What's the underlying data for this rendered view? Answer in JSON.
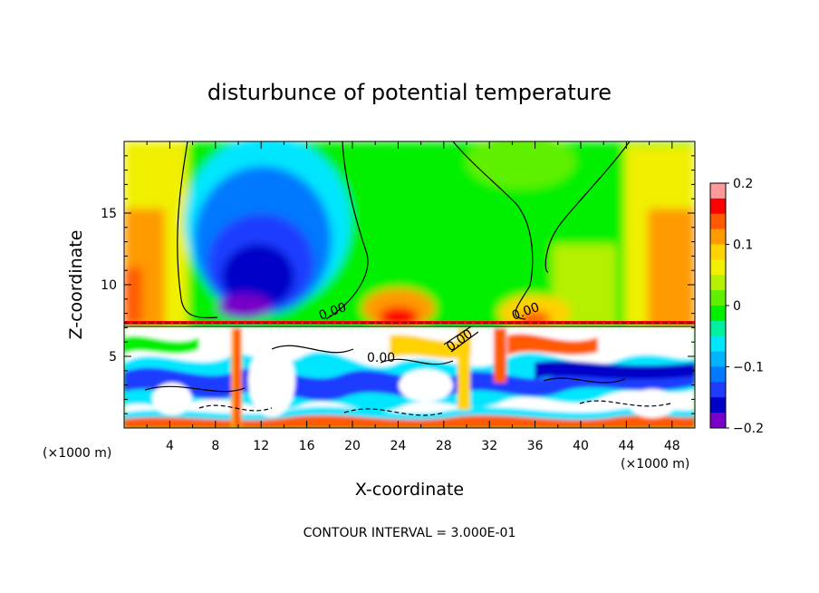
{
  "chart_data": {
    "type": "heatmap",
    "title": "disturbunce of potential temperature",
    "xlabel": "X-coordinate",
    "ylabel": "Z-coordinate",
    "x_unit": "(×1000 m)",
    "xlim": [
      0,
      50
    ],
    "ylim": [
      0,
      20
    ],
    "x_ticks": [
      4,
      8,
      12,
      16,
      20,
      24,
      28,
      32,
      36,
      40,
      44,
      48
    ],
    "y_ticks": [
      5,
      10,
      15
    ],
    "colorbar": {
      "range": [
        -0.2,
        0.2
      ],
      "tick_values": [
        0.2,
        0.1,
        0,
        -0.1,
        -0.2
      ],
      "tick_labels": [
        "0.2",
        "0.1",
        "0",
        "−0.1",
        "−0.2"
      ],
      "colors": [
        "#ff9a9a",
        "#ff0000",
        "#ff5a00",
        "#ff9a00",
        "#ffd200",
        "#f0f000",
        "#b4f000",
        "#5ef000",
        "#00f000",
        "#00f0a0",
        "#00e6ff",
        "#00b4ff",
        "#0078ff",
        "#1e3cff",
        "#0000c8",
        "#7800c8"
      ]
    },
    "contour_labels": [
      "0.00",
      "0.00",
      "0.00",
      "0.00"
    ],
    "footer": "CONTOUR INTERVAL = 3.000E-01"
  }
}
